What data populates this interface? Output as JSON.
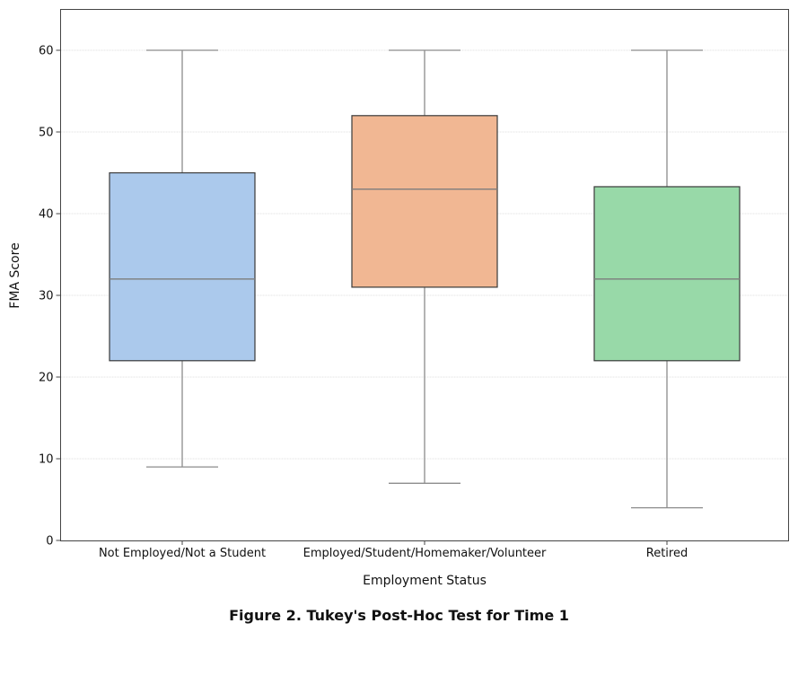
{
  "chart_data": {
    "type": "box",
    "title": "",
    "caption": "Figure 2. Tukey's Post-Hoc Test for Time 1",
    "xlabel": "Employment Status",
    "ylabel": "FMA Score",
    "ylim": [
      0,
      65
    ],
    "yticks": [
      0,
      10,
      20,
      30,
      40,
      50,
      60
    ],
    "grid": true,
    "legend": null,
    "categories": [
      "Not Employed/Not a Student",
      "Employed/Student/Homemaker/Volunteer",
      "Retired"
    ],
    "series": [
      {
        "name": "Not Employed/Not a Student",
        "whisker_low": 9,
        "q1": 22,
        "median": 32,
        "q3": 45,
        "whisker_high": 60,
        "color": "#abc9ec"
      },
      {
        "name": "Employed/Student/Homemaker/Volunteer",
        "whisker_low": 7,
        "q1": 31,
        "median": 43,
        "q3": 52,
        "whisker_high": 60,
        "color": "#f1b793"
      },
      {
        "name": "Retired",
        "whisker_low": 4,
        "q1": 22,
        "median": 32,
        "q3": 43.3,
        "whisker_high": 60,
        "color": "#98d9a8"
      }
    ]
  }
}
